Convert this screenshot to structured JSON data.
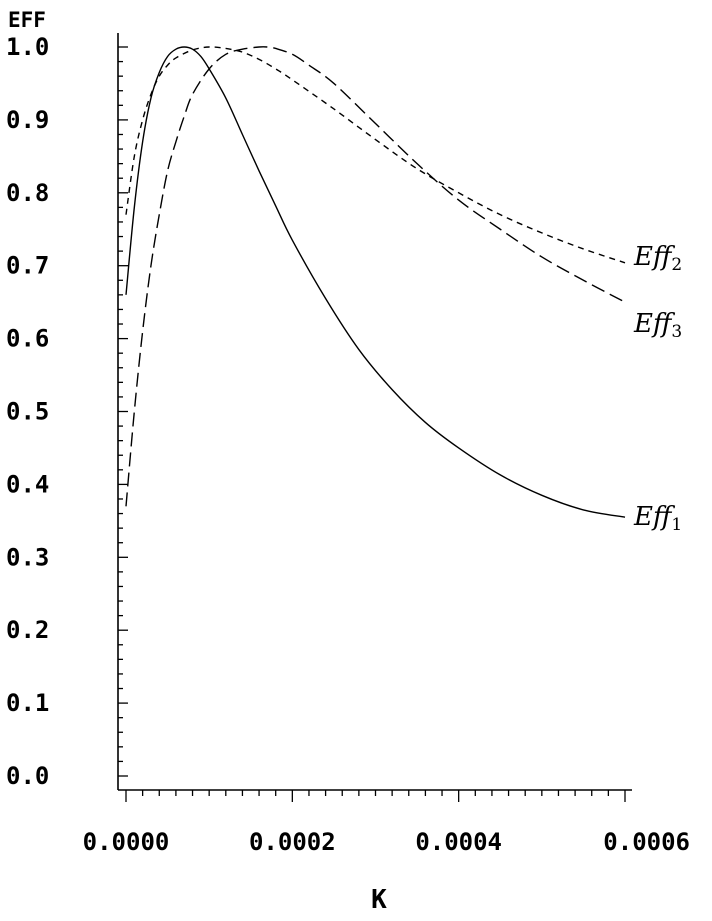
{
  "chart_data": {
    "type": "line",
    "title": "",
    "xlabel": "K",
    "ylabel": "EFF",
    "xlim": [
      0,
      0.0006
    ],
    "ylim": [
      0,
      1.0
    ],
    "grid": false,
    "x_ticks": [
      "0.0000",
      "0.0002",
      "0.0004",
      "0.0006"
    ],
    "y_ticks": [
      "0.0",
      "0.1",
      "0.2",
      "0.3",
      "0.4",
      "0.5",
      "0.6",
      "0.7",
      "0.8",
      "0.9",
      "1.0"
    ],
    "series": [
      {
        "name": "Eff1",
        "label_base": "Eff",
        "label_sub": "1",
        "style": "solid",
        "color": "#000000",
        "x": [
          0,
          1e-05,
          2e-05,
          3e-05,
          4e-05,
          5e-05,
          6e-05,
          7e-05,
          8e-05,
          9e-05,
          0.0001,
          0.00012,
          0.00014,
          0.00016,
          0.00018,
          0.0002,
          0.00024,
          0.00028,
          0.00032,
          0.00036,
          0.0004,
          0.00045,
          0.0005,
          0.00055,
          0.0006
        ],
        "y": [
          0.66,
          0.78,
          0.87,
          0.93,
          0.965,
          0.987,
          0.997,
          1.0,
          0.997,
          0.987,
          0.97,
          0.93,
          0.88,
          0.83,
          0.782,
          0.735,
          0.655,
          0.585,
          0.53,
          0.485,
          0.45,
          0.413,
          0.385,
          0.365,
          0.355
        ]
      },
      {
        "name": "Eff2",
        "label_base": "Eff",
        "label_sub": "2",
        "style": "short-dash",
        "color": "#000000",
        "x": [
          0,
          1e-05,
          2e-05,
          3e-05,
          4e-05,
          5e-05,
          6e-05,
          8e-05,
          0.0001,
          0.00012,
          0.00014,
          0.00016,
          0.00018,
          0.0002,
          0.00025,
          0.0003,
          0.00035,
          0.0004,
          0.00045,
          0.0005,
          0.00055,
          0.0006
        ],
        "y": [
          0.77,
          0.85,
          0.9,
          0.935,
          0.96,
          0.975,
          0.985,
          0.996,
          1.0,
          0.998,
          0.993,
          0.983,
          0.97,
          0.955,
          0.915,
          0.873,
          0.833,
          0.8,
          0.77,
          0.745,
          0.723,
          0.704
        ]
      },
      {
        "name": "Eff3",
        "label_base": "Eff",
        "label_sub": "3",
        "style": "long-dash",
        "color": "#000000",
        "x": [
          0,
          1e-05,
          2e-05,
          3e-05,
          4e-05,
          5e-05,
          6e-05,
          7e-05,
          8e-05,
          0.0001,
          0.00012,
          0.00014,
          0.00016,
          0.00017,
          0.00018,
          0.0002,
          0.00022,
          0.00025,
          0.0003,
          0.00035,
          0.0004,
          0.00045,
          0.0005,
          0.00055,
          0.0006
        ],
        "y": [
          0.37,
          0.5,
          0.61,
          0.7,
          0.77,
          0.83,
          0.87,
          0.905,
          0.935,
          0.97,
          0.99,
          0.997,
          1.0,
          1.0,
          0.998,
          0.99,
          0.975,
          0.95,
          0.895,
          0.84,
          0.79,
          0.75,
          0.712,
          0.68,
          0.65
        ]
      }
    ]
  }
}
